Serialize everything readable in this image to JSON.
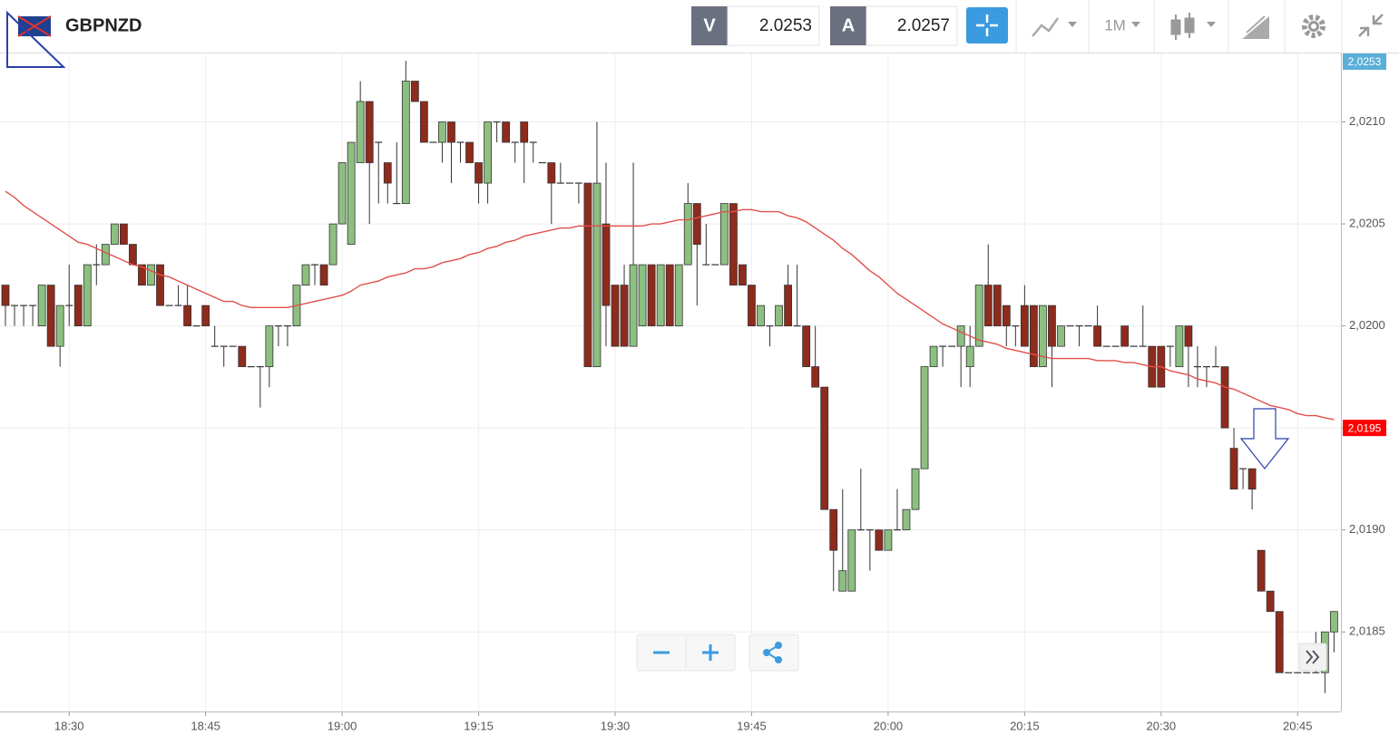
{
  "header": {
    "symbol": "GBPNZD",
    "sell_label": "V",
    "sell_price": 2.0253,
    "buy_label": "A",
    "buy_price": 2.0257,
    "timeframe": "1M"
  },
  "chart_data": {
    "type": "candlestick",
    "categories": [
      null,
      null,
      null,
      null,
      null,
      null,
      null,
      "18:30",
      null,
      null,
      null,
      null,
      null,
      null,
      null,
      null,
      null,
      null,
      null,
      null,
      null,
      null,
      "18:45",
      null,
      null,
      null,
      null,
      null,
      null,
      null,
      null,
      null,
      null,
      null,
      null,
      null,
      null,
      "19:00",
      null,
      null,
      null,
      null,
      null,
      null,
      null,
      null,
      null,
      null,
      null,
      null,
      null,
      null,
      "19:15",
      null,
      null,
      null,
      null,
      null,
      null,
      null,
      null,
      null,
      null,
      null,
      null,
      null,
      null,
      "19:30",
      null,
      null,
      null,
      null,
      null,
      null,
      null,
      null,
      null,
      null,
      null,
      null,
      null,
      null,
      "19:45",
      null,
      null,
      null,
      null,
      null,
      null,
      null,
      null,
      null,
      null,
      null,
      null,
      null,
      null,
      "20:00",
      null,
      null,
      null,
      null,
      null,
      null,
      null,
      null,
      null,
      null,
      null,
      null,
      null,
      null,
      "20:15",
      null,
      null,
      null,
      null,
      null,
      null,
      null,
      null,
      null,
      null,
      null,
      null,
      null,
      null,
      "20:30",
      null,
      null,
      null,
      null,
      null,
      null,
      null,
      null,
      null,
      null,
      null,
      null,
      null,
      null,
      "20:45",
      null,
      null,
      null,
      null
    ],
    "ohlc": [
      [
        2.0202,
        2.0202,
        2.02,
        2.0201
      ],
      [
        2.0201,
        2.0201,
        2.02,
        2.0201
      ],
      [
        2.0201,
        2.0201,
        2.02,
        2.0201
      ],
      [
        2.0201,
        2.0201,
        2.02,
        2.0201
      ],
      [
        2.02,
        2.0202,
        2.02,
        2.0202
      ],
      [
        2.0202,
        2.0202,
        2.0199,
        2.0199
      ],
      [
        2.0199,
        2.0201,
        2.0198,
        2.0201
      ],
      [
        2.0201,
        2.0203,
        2.02,
        2.0201
      ],
      [
        2.0202,
        2.0202,
        2.02,
        2.02
      ],
      [
        2.02,
        2.0203,
        2.02,
        2.0203
      ],
      [
        2.0203,
        2.0204,
        2.0202,
        2.0203
      ],
      [
        2.0203,
        2.0204,
        2.0203,
        2.0204
      ],
      [
        2.0204,
        2.0205,
        2.0204,
        2.0205
      ],
      [
        2.0205,
        2.0205,
        2.0204,
        2.0204
      ],
      [
        2.0204,
        2.0204,
        2.0203,
        2.0203
      ],
      [
        2.0203,
        2.0203,
        2.0202,
        2.0202
      ],
      [
        2.0202,
        2.0203,
        2.0202,
        2.0203
      ],
      [
        2.0203,
        2.0203,
        2.0201,
        2.0201
      ],
      [
        2.0201,
        2.0201,
        2.0201,
        2.0201
      ],
      [
        2.0201,
        2.0202,
        2.0201,
        2.0201
      ],
      [
        2.0201,
        2.0202,
        2.02,
        2.02
      ],
      [
        2.02,
        2.02,
        2.02,
        2.02
      ],
      [
        2.0201,
        2.0201,
        2.02,
        2.02
      ],
      [
        2.0199,
        2.02,
        2.0199,
        2.0199
      ],
      [
        2.0199,
        2.0199,
        2.0198,
        2.0199
      ],
      [
        2.0199,
        2.0199,
        2.0199,
        2.0199
      ],
      [
        2.0199,
        2.0199,
        2.0198,
        2.0198
      ],
      [
        2.0198,
        2.0198,
        2.0198,
        2.0198
      ],
      [
        2.0198,
        2.0198,
        2.0196,
        2.0198
      ],
      [
        2.0198,
        2.02,
        2.0197,
        2.02
      ],
      [
        2.02,
        2.02,
        2.0199,
        2.02
      ],
      [
        2.02,
        2.02,
        2.0199,
        2.02
      ],
      [
        2.02,
        2.0202,
        2.02,
        2.0202
      ],
      [
        2.0202,
        2.0203,
        2.0202,
        2.0203
      ],
      [
        2.0203,
        2.0203,
        2.0202,
        2.0203
      ],
      [
        2.0203,
        2.0203,
        2.0202,
        2.0202
      ],
      [
        2.0203,
        2.0205,
        2.0203,
        2.0205
      ],
      [
        2.0205,
        2.0208,
        2.0205,
        2.0208
      ],
      [
        2.0204,
        2.0209,
        2.0204,
        2.0209
      ],
      [
        2.0208,
        2.0212,
        2.0208,
        2.0211
      ],
      [
        2.0211,
        2.0211,
        2.0205,
        2.0208
      ],
      [
        2.0209,
        2.0209,
        2.0206,
        2.0209
      ],
      [
        2.0208,
        2.0208,
        2.0206,
        2.0207
      ],
      [
        2.0206,
        2.0209,
        2.0206,
        2.0206
      ],
      [
        2.0206,
        2.0213,
        2.0206,
        2.0212
      ],
      [
        2.0212,
        2.0212,
        2.0211,
        2.0211
      ],
      [
        2.0211,
        2.0211,
        2.0209,
        2.0209
      ],
      [
        2.0209,
        2.0209,
        2.0209,
        2.0209
      ],
      [
        2.0209,
        2.021,
        2.0208,
        2.021
      ],
      [
        2.021,
        2.021,
        2.0207,
        2.0209
      ],
      [
        2.0209,
        2.0209,
        2.0208,
        2.0209
      ],
      [
        2.0209,
        2.0209,
        2.0208,
        2.0208
      ],
      [
        2.0208,
        2.0208,
        2.0206,
        2.0207
      ],
      [
        2.0207,
        2.021,
        2.0206,
        2.021
      ],
      [
        2.021,
        2.021,
        2.0209,
        2.021
      ],
      [
        2.021,
        2.021,
        2.0209,
        2.0209
      ],
      [
        2.0209,
        2.0209,
        2.0208,
        2.0209
      ],
      [
        2.021,
        2.021,
        2.0207,
        2.0209
      ],
      [
        2.0209,
        2.0209,
        2.0208,
        2.0209
      ],
      [
        2.0208,
        2.0208,
        2.0208,
        2.0208
      ],
      [
        2.0208,
        2.0208,
        2.0205,
        2.0207
      ],
      [
        2.0207,
        2.0208,
        2.0207,
        2.0207
      ],
      [
        2.0207,
        2.0207,
        2.0207,
        2.0207
      ],
      [
        2.0207,
        2.0207,
        2.0206,
        2.0207
      ],
      [
        2.0207,
        2.0207,
        2.0198,
        2.0198
      ],
      [
        2.0198,
        2.021,
        2.0198,
        2.0207
      ],
      [
        2.0205,
        2.0208,
        2.0199,
        2.0201
      ],
      [
        2.0202,
        2.0202,
        2.0199,
        2.0199
      ],
      [
        2.0202,
        2.0203,
        2.0199,
        2.0199
      ],
      [
        2.0199,
        2.0208,
        2.0199,
        2.0203
      ],
      [
        2.02,
        2.0203,
        2.02,
        2.0203
      ],
      [
        2.0203,
        2.0203,
        2.02,
        2.02
      ],
      [
        2.02,
        2.0203,
        2.02,
        2.0203
      ],
      [
        2.0203,
        2.0203,
        2.02,
        2.02
      ],
      [
        2.02,
        2.0203,
        2.02,
        2.0203
      ],
      [
        2.0203,
        2.0207,
        2.0203,
        2.0206
      ],
      [
        2.0206,
        2.0206,
        2.0201,
        2.0204
      ],
      [
        2.0203,
        2.0205,
        2.0203,
        2.0203
      ],
      [
        2.0203,
        2.0203,
        2.0203,
        2.0203
      ],
      [
        2.0203,
        2.0206,
        2.0203,
        2.0206
      ],
      [
        2.0206,
        2.0206,
        2.0202,
        2.0202
      ],
      [
        2.0203,
        2.0203,
        2.0202,
        2.0202
      ],
      [
        2.0202,
        2.0202,
        2.02,
        2.02
      ],
      [
        2.02,
        2.0201,
        2.02,
        2.0201
      ],
      [
        2.02,
        2.02,
        2.0199,
        2.02
      ],
      [
        2.02,
        2.0201,
        2.02,
        2.0201
      ],
      [
        2.0202,
        2.0203,
        2.02,
        2.02
      ],
      [
        2.02,
        2.0203,
        2.02,
        2.02
      ],
      [
        2.02,
        2.02,
        2.0198,
        2.0198
      ],
      [
        2.0198,
        2.02,
        2.0197,
        2.0197
      ],
      [
        2.0197,
        2.0197,
        2.0191,
        2.0191
      ],
      [
        2.0191,
        2.0191,
        2.0187,
        2.0189
      ],
      [
        2.0187,
        2.0192,
        2.0187,
        2.0188
      ],
      [
        2.0187,
        2.019,
        2.0187,
        2.019
      ],
      [
        2.019,
        2.0193,
        2.019,
        2.019
      ],
      [
        2.019,
        2.019,
        2.0188,
        2.019
      ],
      [
        2.019,
        2.019,
        2.0189,
        2.0189
      ],
      [
        2.0189,
        2.019,
        2.0189,
        2.019
      ],
      [
        2.019,
        2.0192,
        2.019,
        2.019
      ],
      [
        2.019,
        2.0191,
        2.019,
        2.0191
      ],
      [
        2.0191,
        2.0193,
        2.0191,
        2.0193
      ],
      [
        2.0193,
        2.0198,
        2.0193,
        2.0198
      ],
      [
        2.0198,
        2.0199,
        2.0198,
        2.0199
      ],
      [
        2.0199,
        2.0199,
        2.0198,
        2.0199
      ],
      [
        2.0199,
        2.0199,
        2.0199,
        2.0199
      ],
      [
        2.0199,
        2.02,
        2.0197,
        2.02
      ],
      [
        2.0198,
        2.02,
        2.0197,
        2.0199
      ],
      [
        2.0199,
        2.0202,
        2.0199,
        2.0202
      ],
      [
        2.0202,
        2.0204,
        2.02,
        2.02
      ],
      [
        2.0202,
        2.0202,
        2.02,
        2.02
      ],
      [
        2.0201,
        2.0201,
        2.0199,
        2.02
      ],
      [
        2.02,
        2.02,
        2.0199,
        2.02
      ],
      [
        2.0201,
        2.0202,
        2.0199,
        2.0199
      ],
      [
        2.0201,
        2.0201,
        2.0198,
        2.0198
      ],
      [
        2.0198,
        2.0201,
        2.0198,
        2.0201
      ],
      [
        2.0201,
        2.0201,
        2.0197,
        2.0199
      ],
      [
        2.0199,
        2.02,
        2.0199,
        2.02
      ],
      [
        2.02,
        2.02,
        2.02,
        2.02
      ],
      [
        2.02,
        2.02,
        2.0199,
        2.02
      ],
      [
        2.02,
        2.02,
        2.02,
        2.02
      ],
      [
        2.02,
        2.0201,
        2.0199,
        2.0199
      ],
      [
        2.0199,
        2.0199,
        2.0199,
        2.0199
      ],
      [
        2.0199,
        2.0199,
        2.0199,
        2.0199
      ],
      [
        2.02,
        2.02,
        2.0199,
        2.0199
      ],
      [
        2.0199,
        2.0199,
        2.0199,
        2.0199
      ],
      [
        2.0199,
        2.0201,
        2.0199,
        2.0199
      ],
      [
        2.0199,
        2.0199,
        2.0197,
        2.0197
      ],
      [
        2.0199,
        2.0199,
        2.0197,
        2.0197
      ],
      [
        2.0199,
        2.0199,
        2.0198,
        2.0199
      ],
      [
        2.0198,
        2.02,
        2.0198,
        2.02
      ],
      [
        2.02,
        2.02,
        2.0197,
        2.0199
      ],
      [
        2.0198,
        2.0199,
        2.0197,
        2.0198
      ],
      [
        2.0198,
        2.0198,
        2.0197,
        2.0198
      ],
      [
        2.0198,
        2.0199,
        2.0198,
        2.0198
      ],
      [
        2.0198,
        2.0198,
        2.0195,
        2.0195
      ],
      [
        2.0194,
        2.0195,
        2.0192,
        2.0192
      ],
      [
        2.0193,
        2.0193,
        2.0192,
        2.0193
      ],
      [
        2.0193,
        2.0193,
        2.0191,
        2.0192
      ],
      [
        2.0189,
        2.0189,
        2.0187,
        2.0187
      ],
      [
        2.0187,
        2.0187,
        2.0186,
        2.0186
      ],
      [
        2.0186,
        2.0186,
        2.0183,
        2.0183
      ],
      [
        2.0183,
        2.0183,
        2.0183,
        2.0183
      ],
      [
        2.0183,
        2.0183,
        2.0183,
        2.0183
      ],
      [
        2.0183,
        2.0183,
        2.0183,
        2.0183
      ],
      [
        2.0183,
        2.0185,
        2.0183,
        2.0183
      ],
      [
        2.0183,
        2.0185,
        2.0182,
        2.0185
      ],
      [
        2.0185,
        2.0186,
        2.0184,
        2.0186
      ]
    ],
    "up_color": "#8dbf80",
    "down_color": "#8e2b1c",
    "series": [
      {
        "type": "line",
        "color": "#e0504a",
        "values": [
          2.02066,
          2.02063,
          2.02059,
          2.02056,
          2.02053,
          2.0205,
          2.02047,
          2.02044,
          2.02041,
          2.0204,
          2.02038,
          2.02036,
          2.02034,
          2.02032,
          2.0203,
          2.02029,
          2.02027,
          2.02025,
          2.02024,
          2.02022,
          2.0202,
          2.02018,
          2.02016,
          2.02014,
          2.02012,
          2.02012,
          2.0201,
          2.02009,
          2.02009,
          2.02009,
          2.02009,
          2.02009,
          2.0201,
          2.02011,
          2.02012,
          2.02013,
          2.02014,
          2.02015,
          2.02017,
          2.0202,
          2.02021,
          2.02022,
          2.02024,
          2.02025,
          2.02026,
          2.02028,
          2.02028,
          2.02029,
          2.02031,
          2.02032,
          2.02033,
          2.02035,
          2.02036,
          2.02038,
          2.02039,
          2.02041,
          2.02042,
          2.02044,
          2.02045,
          2.02046,
          2.02047,
          2.02048,
          2.02048,
          2.02049,
          2.02049,
          2.02049,
          2.02049,
          2.02049,
          2.02049,
          2.02049,
          2.02049,
          2.0205,
          2.0205,
          2.02051,
          2.02052,
          2.02052,
          2.02053,
          2.02054,
          2.02055,
          2.02056,
          2.02056,
          2.02057,
          2.02057,
          2.02056,
          2.02056,
          2.02056,
          2.02054,
          2.02053,
          2.02051,
          2.02048,
          2.02045,
          2.02042,
          2.02038,
          2.02035,
          2.02031,
          2.02027,
          2.02024,
          2.0202,
          2.02016,
          2.02013,
          2.0201,
          2.02007,
          2.02004,
          2.02001,
          2.01999,
          2.01997,
          2.01995,
          2.01993,
          2.01992,
          2.01991,
          2.01989,
          2.01988,
          2.01987,
          2.01986,
          2.01985,
          2.01984,
          2.01984,
          2.01984,
          2.01984,
          2.01984,
          2.01983,
          2.01983,
          2.01983,
          2.01982,
          2.01982,
          2.01981,
          2.0198,
          2.0198,
          2.01978,
          2.01977,
          2.01976,
          2.01974,
          2.01973,
          2.01972,
          2.0197,
          2.01969,
          2.01967,
          2.01965,
          2.01963,
          2.01961,
          2.0196,
          2.01959,
          2.01957,
          2.01956,
          2.01956,
          2.01955,
          2.01954
        ]
      }
    ],
    "ylim": [
      2.01811,
      2.02134
    ],
    "yticks": [
      {
        "value": 2.021,
        "label": "2,0210"
      },
      {
        "value": 2.0205,
        "label": "2,0205"
      },
      {
        "value": 2.02,
        "label": "2,0200"
      },
      {
        "value": 2.0195,
        "label": "2,0195"
      },
      {
        "value": 2.019,
        "label": "2,0190"
      },
      {
        "value": 2.0185,
        "label": "2,0185"
      }
    ],
    "price_labels": [
      {
        "value": 2.0253,
        "label": "2,0253",
        "color": "#5aafd8"
      },
      {
        "value": 2.0195,
        "label": "2,0195",
        "color": "#ff0000"
      }
    ],
    "grid": true
  }
}
